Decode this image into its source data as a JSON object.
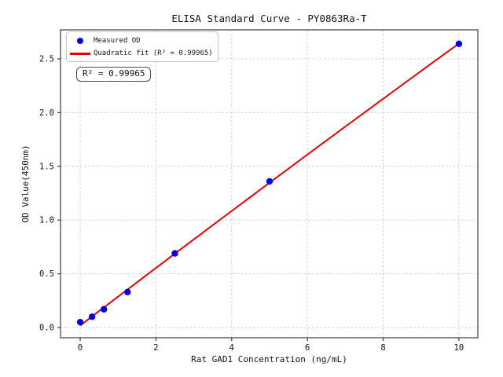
{
  "chart_data": {
    "type": "scatter",
    "title": "ELISA Standard Curve - PY0863Ra-T",
    "xlabel": "Rat GAD1 Concentration (ng/mL)",
    "ylabel": "OD Value(450nm)",
    "x": [
      0,
      0.3125,
      0.625,
      1.25,
      2.5,
      5,
      10
    ],
    "y": [
      0.05,
      0.1,
      0.17,
      0.33,
      0.69,
      1.36,
      2.64
    ],
    "series": [
      {
        "name": "Measured OD",
        "type": "scatter",
        "color": "#0000e6"
      },
      {
        "name": "Quadratic fit (R² = 0.99965)",
        "type": "line",
        "color": "#e30000"
      }
    ],
    "annotation": "R² = 0.99965",
    "r_squared": 0.99965,
    "xlim": [
      -0.52,
      10.5
    ],
    "ylim": [
      -0.095,
      2.77
    ],
    "xticks": [
      0,
      2,
      4,
      6,
      8,
      10
    ],
    "xtick_labels": [
      "0",
      "2",
      "4",
      "6",
      "8",
      "10"
    ],
    "yticks": [
      0,
      0.5,
      1,
      1.5,
      2,
      2.5
    ],
    "ytick_labels": [
      "0.0",
      "0.5",
      "1.0",
      "1.5",
      "2.0",
      "2.5"
    ],
    "grid": true,
    "grid_style": "dashed",
    "legend_position": "upper-left",
    "colors": {
      "grid": "#c8c8c8",
      "spine": "#3d3d3d",
      "text": "#141414",
      "background": "#ffffff"
    }
  }
}
